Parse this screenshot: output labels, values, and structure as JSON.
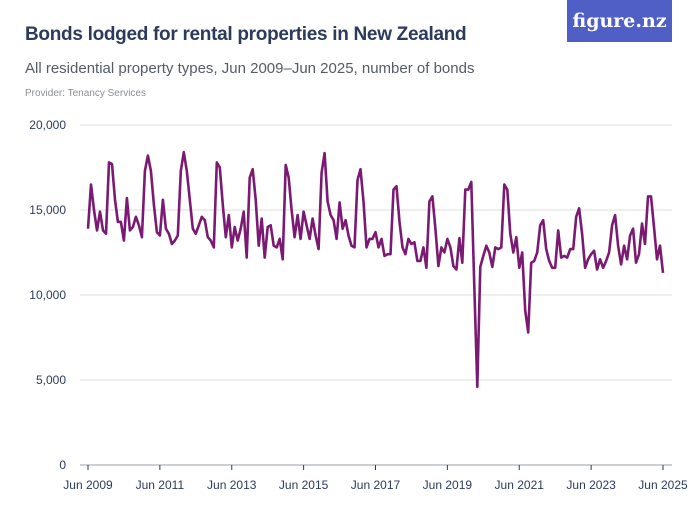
{
  "logo": {
    "text": "figure.nz",
    "color": "#4f5fc6"
  },
  "chart_data": {
    "type": "line",
    "title": "Bonds lodged for rental properties in New Zealand",
    "subtitle": "All residential property types, Jun 2009–Jun 2025, number of bonds",
    "provider": "Provider: Tenancy Services",
    "x_start": "Jun 2009",
    "x_end": "Jun 2025",
    "x_frequency": "monthly",
    "x_ticks": [
      "Jun 2009",
      "Jun 2011",
      "Jun 2013",
      "Jun 2015",
      "Jun 2017",
      "Jun 2019",
      "Jun 2021",
      "Jun 2023",
      "Jun 2025"
    ],
    "y_ticks": [
      "0",
      "5,000",
      "10,000",
      "15,000",
      "20,000"
    ],
    "ylim": [
      0,
      20000
    ],
    "grid": "horizontal",
    "line_color": "#7b1a72",
    "values": [
      13900,
      16500,
      15000,
      13800,
      14900,
      13800,
      13600,
      17800,
      17700,
      15600,
      14300,
      14300,
      13200,
      15700,
      13800,
      14000,
      14600,
      14100,
      13400,
      17300,
      18200,
      17300,
      15300,
      13700,
      13500,
      15600,
      13900,
      13600,
      13000,
      13200,
      13500,
      17300,
      18400,
      17300,
      15600,
      13900,
      13600,
      14100,
      14600,
      14400,
      13400,
      13200,
      12800,
      17800,
      17500,
      15300,
      13400,
      14700,
      12800,
      14000,
      13200,
      13900,
      14900,
      12200,
      16900,
      17400,
      15600,
      12900,
      14500,
      12200,
      14000,
      14100,
      12900,
      12800,
      13300,
      12100,
      17650,
      16900,
      15000,
      13400,
      14700,
      13300,
      14900,
      14100,
      13300,
      14500,
      13500,
      12700,
      17200,
      18350,
      15500,
      14700,
      14400,
      13300,
      15450,
      13900,
      14400,
      13500,
      12900,
      12800,
      16760,
      17400,
      15500,
      12800,
      13300,
      13300,
      13700,
      12800,
      13300,
      12300,
      12400,
      12400,
      16200,
      16400,
      14300,
      12800,
      12400,
      13300,
      13000,
      13100,
      12000,
      12000,
      12800,
      11600,
      15500,
      15800,
      13900,
      11700,
      12800,
      12500,
      13300,
      12800,
      11700,
      11500,
      13350,
      11900,
      16200,
      16200,
      16650,
      10500,
      4600,
      11650,
      12300,
      12900,
      12500,
      11650,
      12800,
      12700,
      12800,
      16500,
      16200,
      13600,
      12500,
      13400,
      11600,
      12500,
      9100,
      7800,
      11900,
      12000,
      12500,
      14100,
      14400,
      12700,
      12000,
      11600,
      11600,
      13800,
      12200,
      12300,
      12200,
      12700,
      12700,
      14600,
      15100,
      13600,
      11600,
      12100,
      12400,
      12600,
      11500,
      12100,
      11600,
      12000,
      12500,
      14100,
      14700,
      12900,
      11800,
      12900,
      12100,
      13500,
      13900,
      11900,
      12400,
      14200,
      13000,
      15800,
      15800,
      14000,
      12100,
      12900,
      11300
    ]
  }
}
